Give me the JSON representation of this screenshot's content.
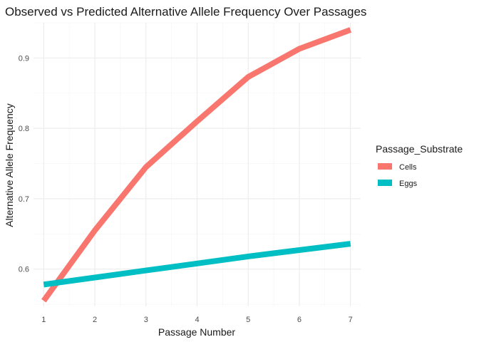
{
  "chart_data": {
    "type": "line",
    "title": "Observed vs Predicted Alternative Allele Frequency Over Passages",
    "xlabel": "Passage Number",
    "ylabel": "Alternative Allele Frequency",
    "x": [
      1,
      2,
      3,
      4,
      5,
      6,
      7
    ],
    "xlim": [
      0.8,
      7.2
    ],
    "ylim": [
      0.547,
      0.95
    ],
    "x_ticks": [
      1,
      2,
      3,
      4,
      5,
      6,
      7
    ],
    "y_ticks": [
      0.6,
      0.7,
      0.8,
      0.9
    ],
    "grid": true,
    "legend": {
      "title": "Passage_Substrate",
      "placement": "right"
    },
    "series": [
      {
        "name": "Cells",
        "color": "#F8766D",
        "values": [
          0.555,
          0.655,
          0.745,
          0.81,
          0.873,
          0.913,
          0.94
        ]
      },
      {
        "name": "Eggs",
        "color": "#00BFC4",
        "values": [
          0.578,
          0.588,
          0.598,
          0.608,
          0.618,
          0.627,
          0.636
        ]
      }
    ]
  }
}
